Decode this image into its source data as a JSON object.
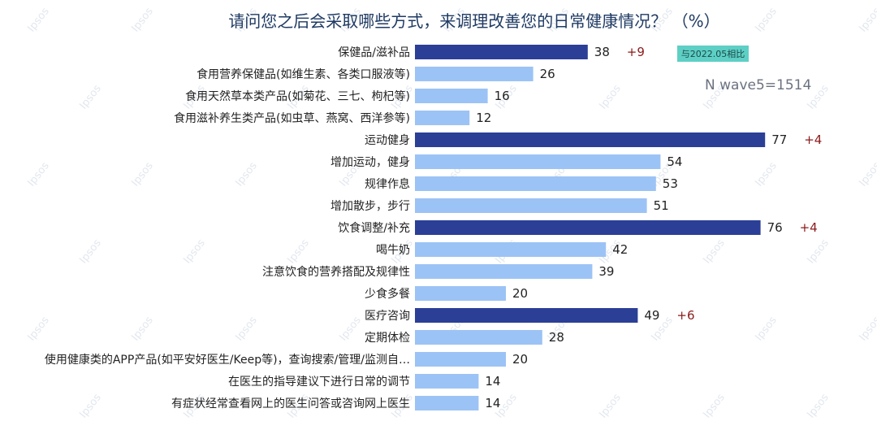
{
  "chart_data": {
    "type": "bar",
    "orientation": "horizontal",
    "title": "请问您之后会采取哪些方式，来调理改善您的日常健康情况？ （%）",
    "sample_note": "N wave5=1514",
    "comparison_label": "与2022.05相比",
    "watermark": "Ipsos",
    "xlim": [
      0,
      100
    ],
    "categories": [
      "保健品/滋补品",
      "食用营养保健品(如维生素、各类口服液等)",
      "食用天然草本类产品(如菊花、三七、枸杞等)",
      "食用滋补养生类产品(如虫草、燕窝、西洋参等)",
      "运动健身",
      "增加运动，健身",
      "规律作息",
      "增加散步，步行",
      "饮食调整/补充",
      "喝牛奶",
      "注意饮食的营养搭配及规律性",
      "少食多餐",
      "医疗咨询",
      "定期体检",
      "使用健康类的APP产品(如平安好医生/Keep等)，查询搜索/管理/监测自…",
      "在医生的指导建议下进行日常的调节",
      "有症状经常查看网上的医生问答或咨询网上医生"
    ],
    "values": [
      38,
      26,
      16,
      12,
      77,
      54,
      53,
      51,
      76,
      42,
      39,
      20,
      49,
      28,
      20,
      14,
      14
    ],
    "group_headers": [
      true,
      false,
      false,
      false,
      true,
      false,
      false,
      false,
      true,
      false,
      false,
      false,
      true,
      false,
      false,
      false,
      false
    ],
    "deltas": [
      "+9",
      "",
      "",
      "",
      "+4",
      "",
      "",
      "",
      "+4",
      "",
      "",
      "",
      "+6",
      "",
      "",
      "",
      ""
    ],
    "colors": {
      "group": "#2b3f97",
      "item": "#9cc3f5",
      "delta": "#8b1a1a",
      "badge_bg": "#5ecfc4",
      "title": "#1f3a63"
    }
  }
}
